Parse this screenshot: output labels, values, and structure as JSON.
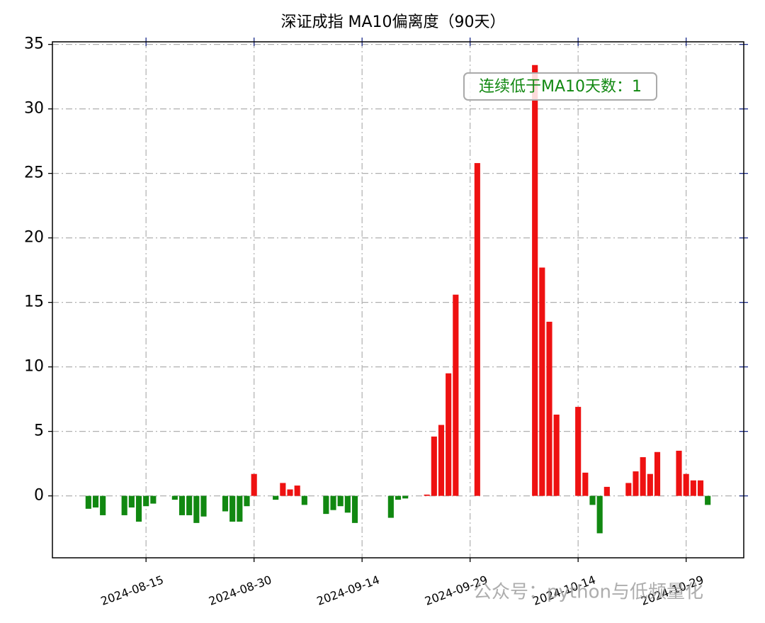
{
  "chart_data": {
    "type": "bar",
    "title": "深证成指 MA10偏离度（90天）",
    "annotation": "连续低于MA10天数：1",
    "watermark": "公众号：python与低频量化",
    "x": [
      "2024-08-07",
      "2024-08-08",
      "2024-08-09",
      "2024-08-12",
      "2024-08-13",
      "2024-08-14",
      "2024-08-15",
      "2024-08-16",
      "2024-08-19",
      "2024-08-20",
      "2024-08-21",
      "2024-08-22",
      "2024-08-23",
      "2024-08-26",
      "2024-08-27",
      "2024-08-28",
      "2024-08-29",
      "2024-08-30",
      "2024-09-02",
      "2024-09-03",
      "2024-09-04",
      "2024-09-05",
      "2024-09-06",
      "2024-09-09",
      "2024-09-10",
      "2024-09-11",
      "2024-09-12",
      "2024-09-13",
      "2024-09-18",
      "2024-09-19",
      "2024-09-20",
      "2024-09-23",
      "2024-09-24",
      "2024-09-25",
      "2024-09-26",
      "2024-09-27",
      "2024-09-30",
      "2024-10-08",
      "2024-10-09",
      "2024-10-10",
      "2024-10-11",
      "2024-10-14",
      "2024-10-15",
      "2024-10-16",
      "2024-10-17",
      "2024-10-18",
      "2024-10-21",
      "2024-10-22",
      "2024-10-23",
      "2024-10-24",
      "2024-10-25",
      "2024-10-28",
      "2024-10-29",
      "2024-10-30",
      "2024-10-31",
      "2024-11-01"
    ],
    "values": [
      -1.0,
      -0.9,
      -1.5,
      -1.5,
      -0.9,
      -2.0,
      -0.8,
      -0.6,
      -0.3,
      -1.5,
      -1.5,
      -2.1,
      -1.6,
      -1.2,
      -2.0,
      -2.0,
      -0.8,
      1.7,
      -0.3,
      1.0,
      0.5,
      0.8,
      -0.7,
      -1.4,
      -1.1,
      -0.8,
      -1.3,
      -2.1,
      -1.7,
      -0.3,
      -0.2,
      0.1,
      4.6,
      5.5,
      9.5,
      15.6,
      25.8,
      33.4,
      17.7,
      13.5,
      6.3,
      6.9,
      1.8,
      -0.7,
      -2.9,
      0.7,
      1.0,
      1.9,
      3.0,
      1.7,
      3.4,
      3.5,
      1.7,
      1.2,
      1.2,
      -0.7
    ],
    "positive_color": "#ee1111",
    "negative_color": "#118811",
    "xlim": [
      "2024-08-02",
      "2024-11-06"
    ],
    "xticks": [
      "2024-08-15",
      "2024-08-30",
      "2024-09-14",
      "2024-09-29",
      "2024-10-14",
      "2024-10-29"
    ],
    "ylim": [
      -4.8,
      35.2
    ],
    "yticks": [
      0,
      5,
      10,
      15,
      20,
      25,
      30,
      35
    ],
    "grid": true
  }
}
